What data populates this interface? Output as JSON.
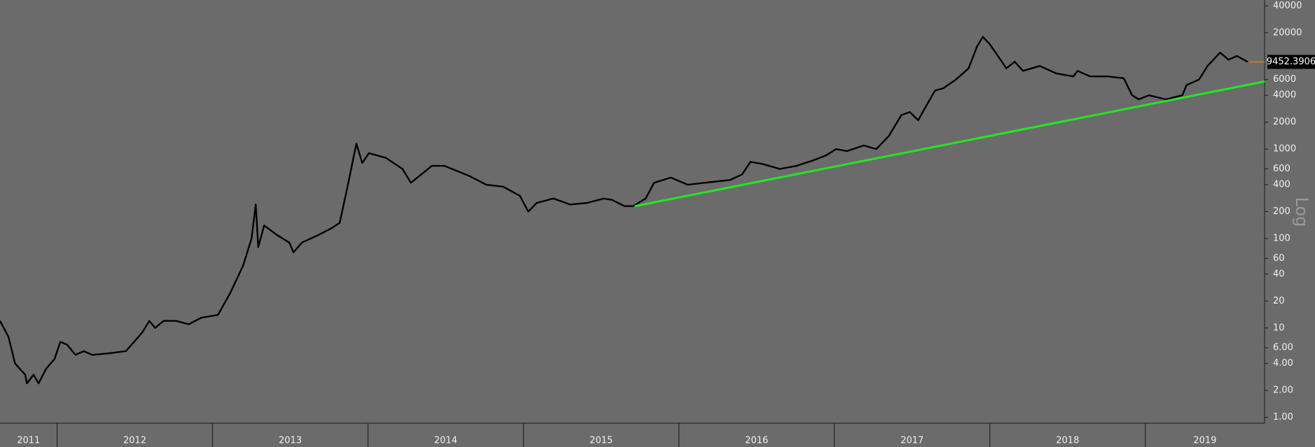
{
  "chart_data": {
    "type": "line",
    "log_scale": true,
    "xlim": [
      2011.633,
      2019.767
    ],
    "ylim": [
      0.86,
      46500
    ],
    "xticks": [
      2011,
      2012,
      2013,
      2014,
      2015,
      2016,
      2017,
      2018,
      2019
    ],
    "yticks": [
      {
        "value": 1,
        "label": "1.00"
      },
      {
        "value": 2,
        "label": "2.00"
      },
      {
        "value": 4,
        "label": "4.00"
      },
      {
        "value": 6,
        "label": "6.00"
      },
      10,
      20,
      40,
      60,
      100,
      200,
      400,
      600,
      1000,
      2000,
      4000,
      6000,
      20000,
      40000
    ],
    "y_scale_label": "Log",
    "last_price": 9452.3906,
    "series": [
      {
        "color": "#000000",
        "x": [
          2011.633,
          2011.687,
          2011.73,
          2011.795,
          2011.806,
          2011.849,
          2011.881,
          2011.93,
          2011.984,
          2012.021,
          2012.065,
          2012.118,
          2012.172,
          2012.226,
          2012.334,
          2012.442,
          2012.496,
          2012.55,
          2012.593,
          2012.631,
          2012.685,
          2012.766,
          2012.847,
          2012.928,
          2013.035,
          2013.116,
          2013.197,
          2013.251,
          2013.278,
          2013.294,
          2013.332,
          2013.413,
          2013.494,
          2013.521,
          2013.575,
          2013.683,
          2013.764,
          2013.818,
          2013.871,
          2013.925,
          2013.963,
          2014.006,
          2014.114,
          2014.222,
          2014.276,
          2014.33,
          2014.411,
          2014.492,
          2014.653,
          2014.761,
          2014.869,
          2014.977,
          2015.031,
          2015.085,
          2015.193,
          2015.301,
          2015.409,
          2015.516,
          2015.57,
          2015.651,
          2015.705,
          2015.786,
          2015.84,
          2015.894,
          2015.948,
          2016.056,
          2016.164,
          2016.326,
          2016.406,
          2016.46,
          2016.541,
          2016.649,
          2016.757,
          2016.865,
          2016.946,
          2017.011,
          2017.081,
          2017.189,
          2017.269,
          2017.35,
          2017.431,
          2017.485,
          2017.539,
          2017.593,
          2017.647,
          2017.701,
          2017.782,
          2017.863,
          2017.917,
          2017.955,
          2017.998,
          2018.052,
          2018.106,
          2018.16,
          2018.213,
          2018.321,
          2018.429,
          2018.537,
          2018.564,
          2018.645,
          2018.753,
          2018.861,
          2018.915,
          2018.958,
          2019.023,
          2019.131,
          2019.238,
          2019.265,
          2019.346,
          2019.4,
          2019.481,
          2019.535,
          2019.589,
          2019.659
        ],
        "values": [
          12,
          8,
          4,
          3,
          2.4,
          3,
          2.4,
          3.5,
          4.5,
          7,
          6.5,
          5,
          5.5,
          5,
          5.2,
          5.5,
          7,
          9,
          12,
          10,
          12,
          12,
          11,
          13,
          14,
          25,
          50,
          100,
          240,
          80,
          140,
          110,
          90,
          70,
          90,
          110,
          130,
          150,
          400,
          1150,
          700,
          900,
          800,
          600,
          420,
          500,
          650,
          650,
          500,
          400,
          380,
          300,
          200,
          250,
          280,
          240,
          250,
          280,
          270,
          230,
          230,
          280,
          420,
          450,
          480,
          400,
          420,
          450,
          520,
          720,
          680,
          600,
          650,
          750,
          850,
          1000,
          950,
          1100,
          1000,
          1400,
          2400,
          2600,
          2100,
          3100,
          4500,
          4800,
          6000,
          8000,
          14000,
          18000,
          15000,
          11000,
          8000,
          9500,
          7500,
          8500,
          7000,
          6500,
          7500,
          6500,
          6500,
          6200,
          4000,
          3600,
          4000,
          3600,
          4000,
          5200,
          6000,
          8500,
          12000,
          10000,
          11000,
          9452.3906
        ]
      },
      {
        "color": "#22e822",
        "x": [
          2015.716,
          2019.767
        ],
        "values": [
          230,
          5700
        ]
      }
    ]
  }
}
